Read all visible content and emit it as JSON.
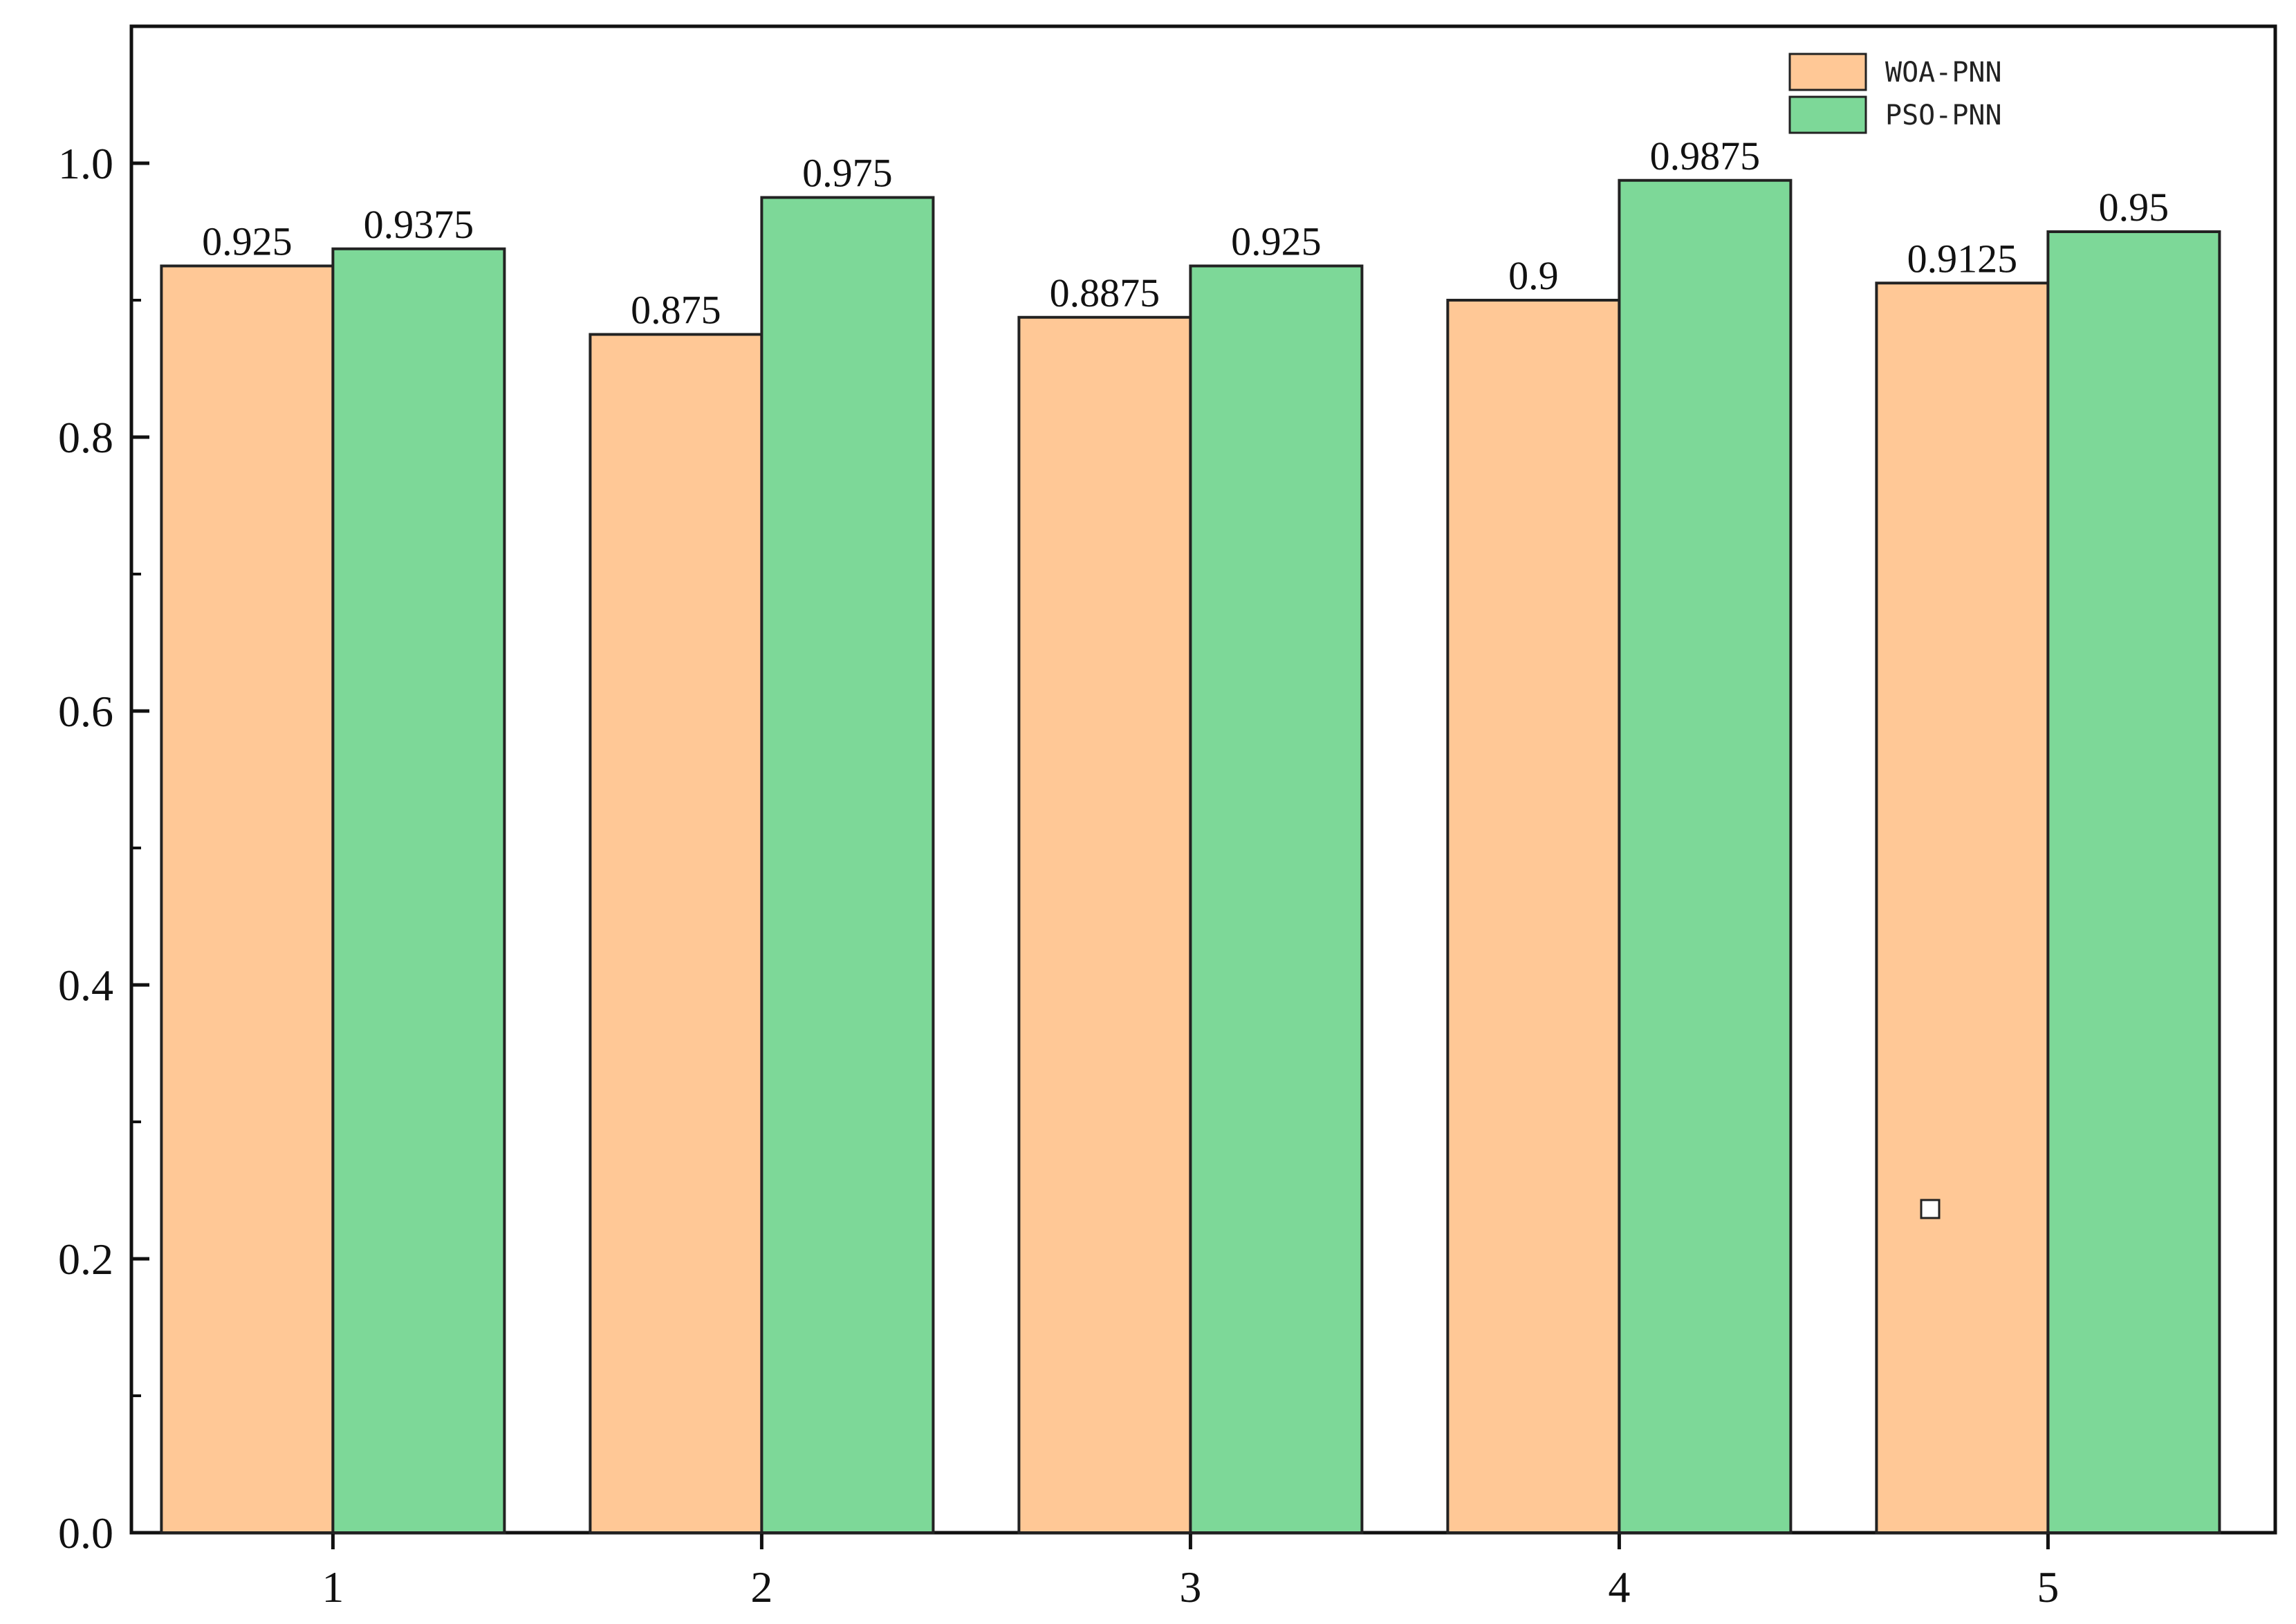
{
  "chart_data": {
    "type": "bar",
    "title": "",
    "xlabel": "",
    "ylabel": "",
    "categories": [
      "1",
      "2",
      "3",
      "4",
      "5"
    ],
    "series": [
      {
        "name": "WOA-PNN",
        "color": "#FFC896",
        "values": [
          0.925,
          0.875,
          0.8875,
          0.9,
          0.9125
        ],
        "labels": [
          "0.925",
          "0.875",
          "0.8875",
          "0.9",
          "0.9125"
        ]
      },
      {
        "name": "PSO-PNN",
        "color": "#7DD898",
        "values": [
          0.9375,
          0.975,
          0.925,
          0.9875,
          0.95
        ],
        "labels": [
          "0.9375",
          "0.975",
          "0.925",
          "0.9875",
          "0.95"
        ]
      }
    ],
    "ylim": [
      0,
      1.1
    ],
    "yticks": [
      0,
      0.2,
      0.4,
      0.6,
      0.8,
      1.0
    ],
    "ytick_labels": [
      "0.0",
      "0.2",
      "0.4",
      "0.6",
      "0.8",
      "1.0"
    ],
    "grid": false,
    "legend_position": "top-right"
  }
}
